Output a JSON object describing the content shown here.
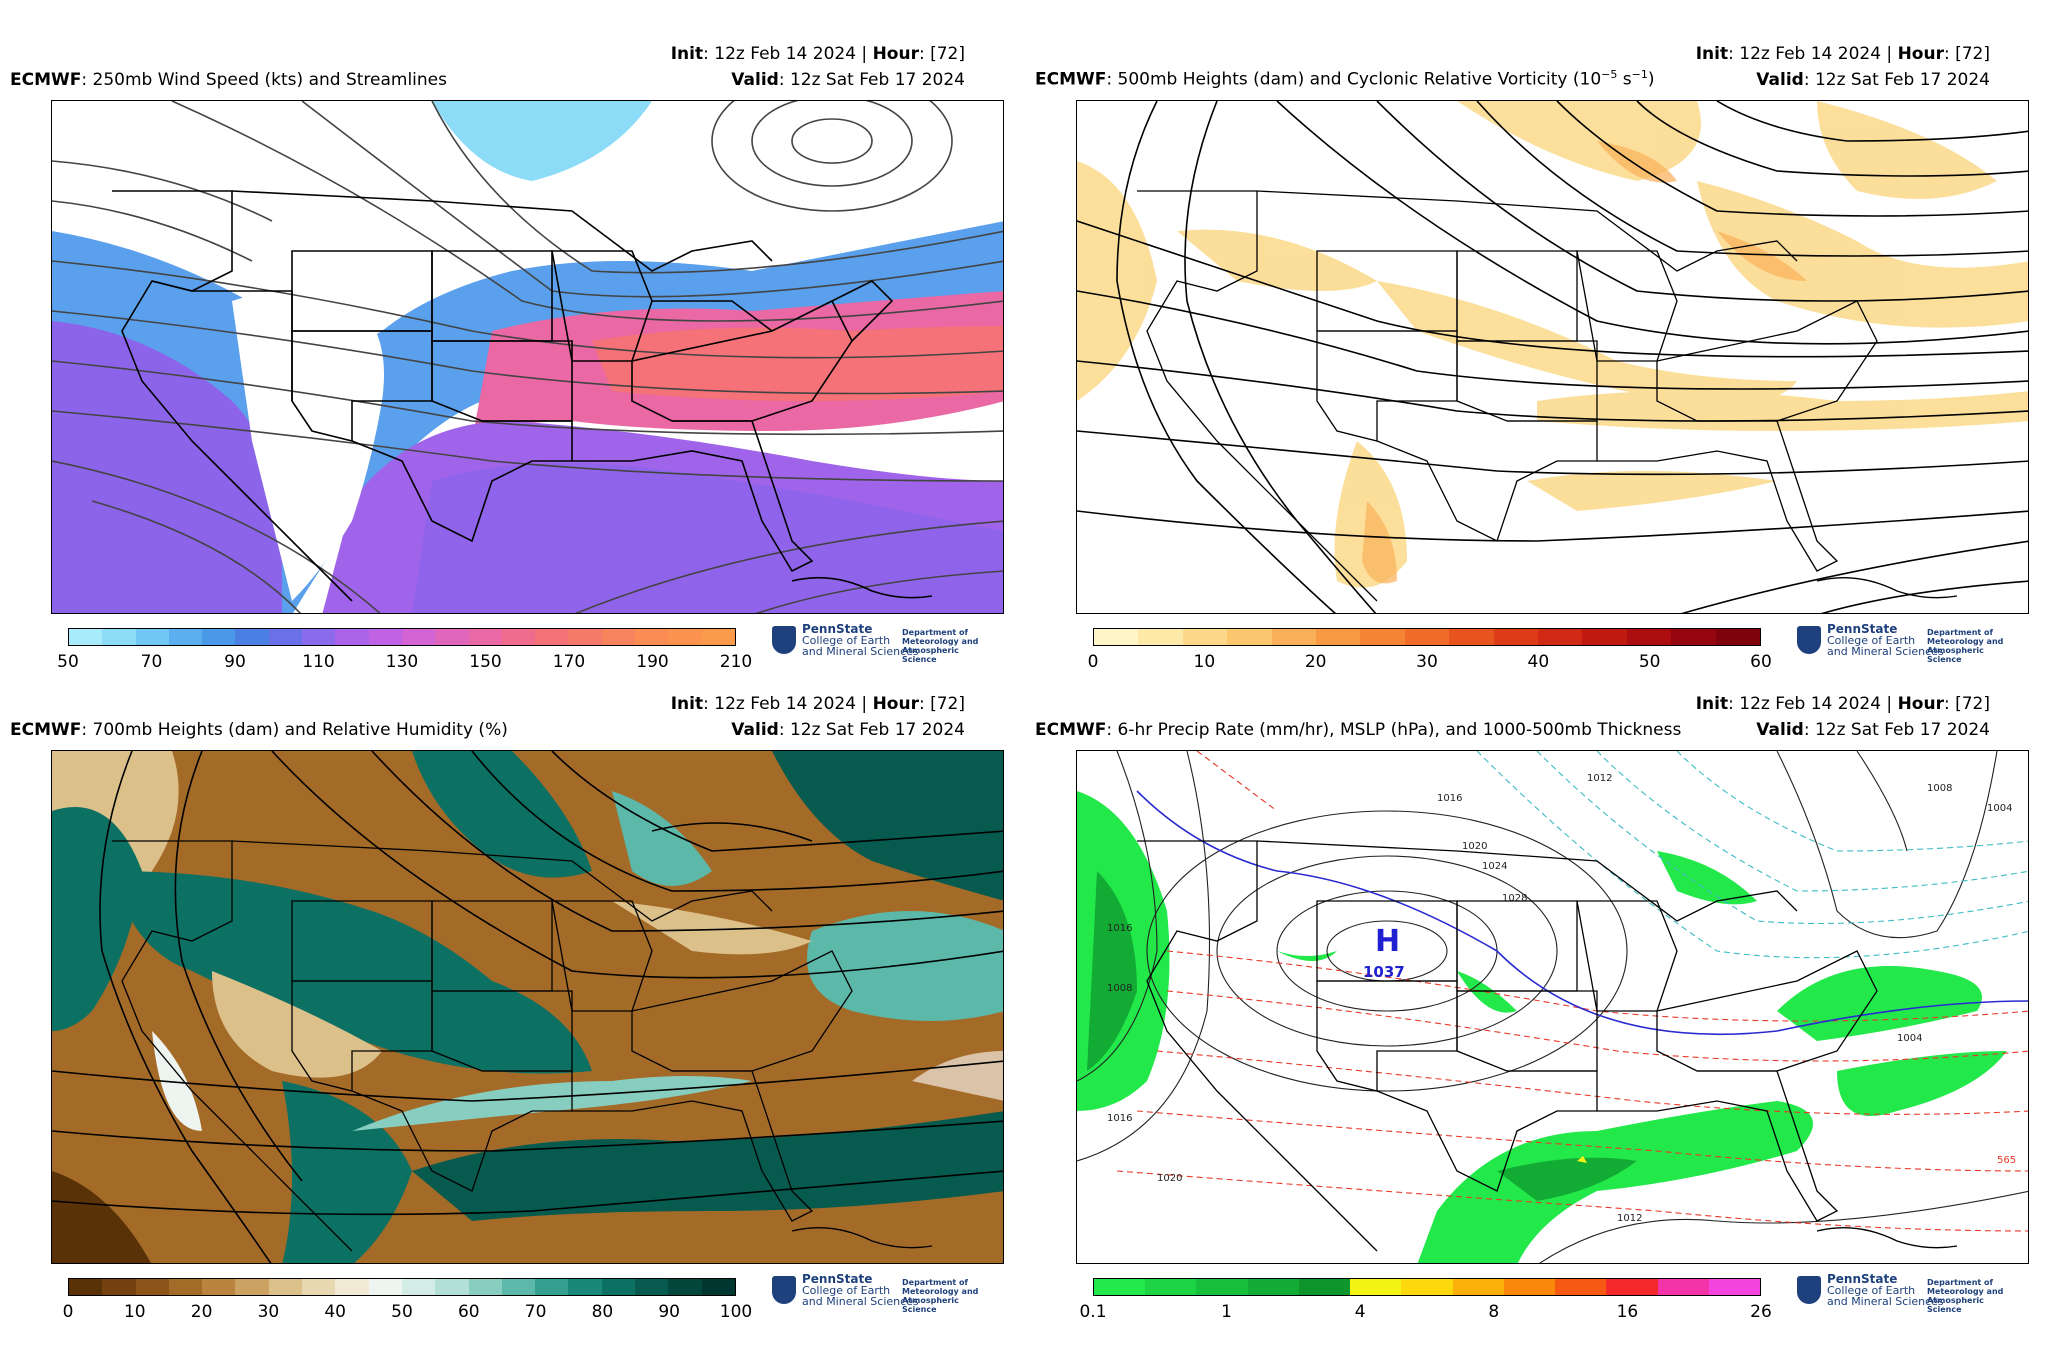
{
  "logo": {
    "name": "PennState",
    "college_line1": "College of Earth",
    "college_line2": "and Mineral Sciences",
    "dept_line1": "Department of",
    "dept_line2": "Meteorology and",
    "dept_line3": "Atmospheric Science"
  },
  "panels": [
    {
      "model": "ECMWF",
      "title": ": 250mb Wind Speed (kts) and Streamlines",
      "init_label": "Init",
      "init_value": ": 12z Feb 14 2024 | ",
      "hour_label": "Hour",
      "hour_value": ": [72]",
      "valid_label": "Valid",
      "valid_value": ": 12z Sat Feb 17 2024",
      "colorbar": {
        "colors": [
          "#a8ecfc",
          "#8cdcf8",
          "#70c8f4",
          "#5ab0ee",
          "#4a98e8",
          "#4a80e4",
          "#6a70e8",
          "#8c6aec",
          "#aa64ea",
          "#c062e4",
          "#d464d4",
          "#e066bc",
          "#ea68a4",
          "#f06c8c",
          "#f47278",
          "#f67a6a",
          "#f8845e",
          "#fa8c54",
          "#fc9450",
          "#fc9a4c"
        ],
        "ticks": [
          "50",
          "70",
          "90",
          "110",
          "130",
          "150",
          "170",
          "190",
          "210"
        ]
      }
    },
    {
      "model": "ECMWF",
      "title": ": 500mb Heights (dam) and Cyclonic Relative Vorticity (10",
      "title_sup1": "−5",
      "title_mid": " s",
      "title_sup2": "−1",
      "title_end": ")",
      "init_label": "Init",
      "init_value": ": 12z Feb 14 2024 | ",
      "hour_label": "Hour",
      "hour_value": ": [72]",
      "valid_label": "Valid",
      "valid_value": ": 12z Sat Feb 17 2024",
      "colorbar": {
        "colors": [
          "#fef6c8",
          "#fde9a8",
          "#fcd98a",
          "#fbc66e",
          "#f9b058",
          "#f89a44",
          "#f58434",
          "#f06c28",
          "#e8541e",
          "#de3c18",
          "#d02a14",
          "#c01a10",
          "#ac0e10",
          "#96060e",
          "#80020c"
        ],
        "ticks": [
          "0",
          "10",
          "20",
          "30",
          "40",
          "50",
          "60"
        ]
      }
    },
    {
      "model": "ECMWF",
      "title": ": 700mb Heights (dam) and Relative Humidity (%)",
      "init_label": "Init",
      "init_value": ": 12z Feb 14 2024 | ",
      "hour_label": "Hour",
      "hour_value": ": [72]",
      "valid_label": "Valid",
      "valid_value": ": 12z Sat Feb 17 2024",
      "colorbar": {
        "colors": [
          "#5a3208",
          "#74420e",
          "#8c5418",
          "#a46a28",
          "#ba8440",
          "#cca262",
          "#dcc08a",
          "#e8d8b2",
          "#f2ead4",
          "#eef4f0",
          "#d4ece6",
          "#b2e0d6",
          "#88cec0",
          "#5cb8a8",
          "#36a090",
          "#1a8878",
          "#0c7062",
          "#065a4e",
          "#02463c",
          "#003630"
        ],
        "ticks": [
          "0",
          "10",
          "20",
          "30",
          "40",
          "50",
          "60",
          "70",
          "80",
          "90",
          "100"
        ]
      }
    },
    {
      "model": "ECMWF",
      "title": ": 6-hr Precip Rate (mm/hr), MSLP (hPa), and 1000-500mb Thickness",
      "init_label": "Init",
      "init_value": ": 12z Feb 14 2024 | ",
      "hour_label": "Hour",
      "hour_value": ": [72]",
      "valid_label": "Valid",
      "valid_value": ": 12z Sat Feb 17 2024",
      "colorbar": {
        "colors": [
          "#22e84a",
          "#1cd444",
          "#16c03c",
          "#12ac34",
          "#0e962c",
          "#f4f414",
          "#fcd80c",
          "#fcb00a",
          "#fa880a",
          "#f65a12",
          "#f42a2a",
          "#f234a8",
          "#f444e0"
        ],
        "ticks": [
          "0.1",
          "1",
          "4",
          "8",
          "16",
          "26"
        ]
      },
      "labels": {
        "high_letter": "H",
        "high_value": "1037",
        "isobars": [
          "1016",
          "1020",
          "1024",
          "1028",
          "1012",
          "1008",
          "1004",
          "1016",
          "1020",
          "1012",
          "1004",
          "1008",
          "1016"
        ],
        "thickness": [
          "565"
        ]
      }
    }
  ]
}
